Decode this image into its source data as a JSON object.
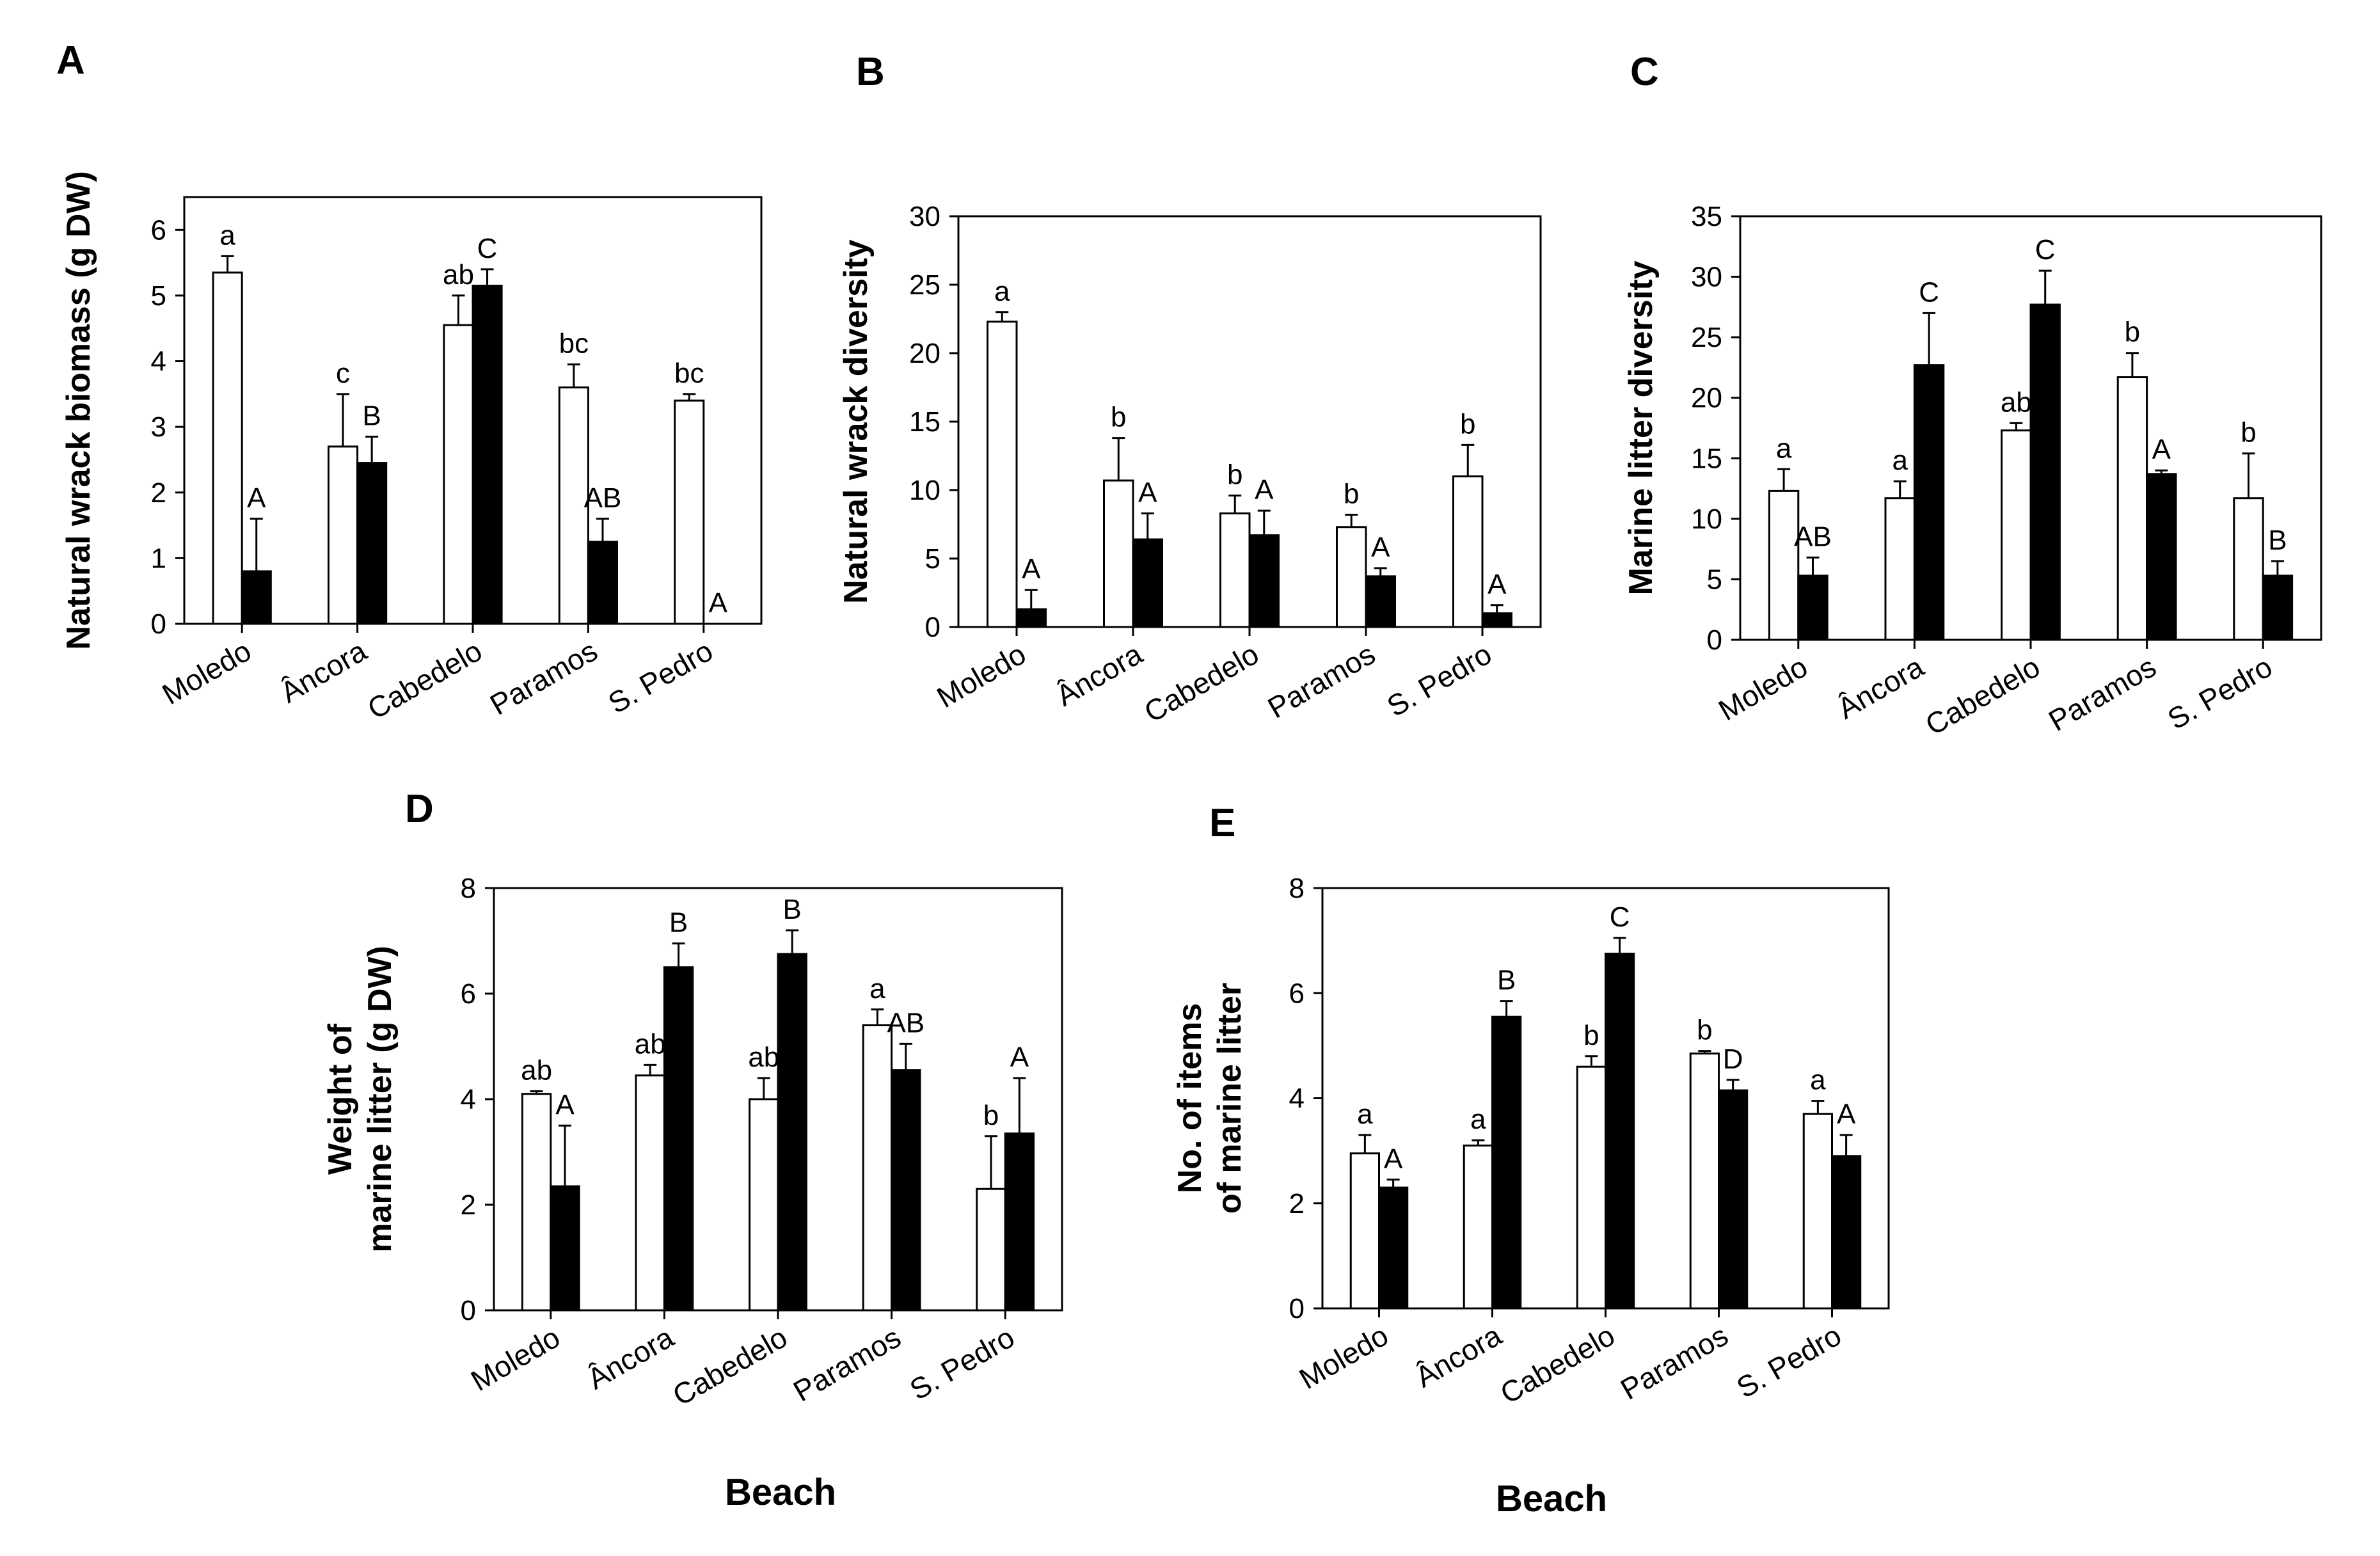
{
  "figure": {
    "description_axis_title": "Beach",
    "colors": {
      "open_bar": "#ffffff",
      "filled_bar": "#000000",
      "stroke": "#000000"
    }
  },
  "chart_data": [
    {
      "panel": "A",
      "type": "bar",
      "categories": [
        "Moledo",
        "Âncora",
        "Cabedelo",
        "Paramos",
        "S. Pedro"
      ],
      "ylabel": "Natural wrack biomass (g DW)",
      "xlabel": "",
      "ylim": [
        0,
        6.5
      ],
      "yticks": [
        0,
        1,
        2,
        3,
        4,
        5,
        6
      ],
      "series": [
        {
          "name": "open",
          "fill": "#ffffff",
          "values": [
            5.35,
            2.7,
            4.55,
            3.6,
            3.4
          ],
          "errors": [
            0.25,
            0.8,
            0.45,
            0.35,
            0.1
          ],
          "letters": [
            "a",
            "c",
            "ab",
            "bc",
            "bc"
          ]
        },
        {
          "name": "filled",
          "fill": "#000000",
          "values": [
            0.8,
            2.45,
            5.15,
            1.25,
            0
          ],
          "errors": [
            0.8,
            0.4,
            0.25,
            0.35,
            0
          ],
          "letters": [
            "A",
            "B",
            "C",
            "AB",
            "A"
          ]
        }
      ]
    },
    {
      "panel": "B",
      "type": "bar",
      "categories": [
        "Moledo",
        "Âncora",
        "Cabedelo",
        "Paramos",
        "S. Pedro"
      ],
      "ylabel": "Natural wrack diversity",
      "xlabel": "",
      "ylim": [
        0,
        30
      ],
      "yticks": [
        0,
        5,
        10,
        15,
        20,
        25,
        30
      ],
      "series": [
        {
          "name": "open",
          "fill": "#ffffff",
          "values": [
            22.3,
            10.7,
            8.3,
            7.3,
            11.0
          ],
          "errors": [
            0.7,
            3.1,
            1.3,
            0.9,
            2.3
          ],
          "letters": [
            "a",
            "b",
            "b",
            "b",
            "b"
          ]
        },
        {
          "name": "filled",
          "fill": "#000000",
          "values": [
            1.3,
            6.4,
            6.7,
            3.7,
            1.0
          ],
          "errors": [
            1.4,
            1.9,
            1.8,
            0.6,
            0.6
          ],
          "letters": [
            "A",
            "A",
            "A",
            "A",
            "A"
          ]
        }
      ]
    },
    {
      "panel": "C",
      "type": "bar",
      "categories": [
        "Moledo",
        "Âncora",
        "Cabedelo",
        "Paramos",
        "S. Pedro"
      ],
      "ylabel": "Marine litter diversity",
      "xlabel": "",
      "ylim": [
        0,
        35
      ],
      "yticks": [
        0,
        5,
        10,
        15,
        20,
        25,
        30,
        35
      ],
      "series": [
        {
          "name": "open",
          "fill": "#ffffff",
          "values": [
            12.3,
            11.7,
            17.3,
            21.7,
            11.7
          ],
          "errors": [
            1.8,
            1.4,
            0.6,
            2.0,
            3.7
          ],
          "letters": [
            "a",
            "a",
            "ab",
            "b",
            "b"
          ]
        },
        {
          "name": "filled",
          "fill": "#000000",
          "values": [
            5.3,
            22.7,
            27.7,
            13.7,
            5.3
          ],
          "errors": [
            1.5,
            4.3,
            2.8,
            0.3,
            1.2
          ],
          "letters": [
            "AB",
            "C",
            "C",
            "A",
            "B"
          ]
        }
      ]
    },
    {
      "panel": "D",
      "type": "bar",
      "categories": [
        "Moledo",
        "Âncora",
        "Cabedelo",
        "Paramos",
        "S. Pedro"
      ],
      "ylabel": "Weight of marine litter (g DW)",
      "ylabel_lines": [
        "Weight of",
        "marine litter (g DW)"
      ],
      "xlabel": "Beach",
      "ylim": [
        0,
        8
      ],
      "yticks": [
        0,
        2,
        4,
        6,
        8
      ],
      "series": [
        {
          "name": "open",
          "fill": "#ffffff",
          "values": [
            4.1,
            4.45,
            4.0,
            5.4,
            2.3
          ],
          "errors": [
            0.05,
            0.2,
            0.4,
            0.3,
            1.0
          ],
          "letters": [
            "ab",
            "ab",
            "ab",
            "a",
            "b"
          ]
        },
        {
          "name": "filled",
          "fill": "#000000",
          "values": [
            2.35,
            6.5,
            6.75,
            4.55,
            3.35
          ],
          "errors": [
            1.15,
            0.45,
            0.45,
            0.5,
            1.05
          ],
          "letters": [
            "A",
            "B",
            "B",
            "AB",
            "A"
          ]
        }
      ]
    },
    {
      "panel": "E",
      "type": "bar",
      "categories": [
        "Moledo",
        "Âncora",
        "Cabedelo",
        "Paramos",
        "S. Pedro"
      ],
      "ylabel": "No. of items of marine litter",
      "ylabel_lines": [
        "No. of items",
        "of marine litter"
      ],
      "xlabel": "Beach",
      "ylim": [
        0,
        8
      ],
      "yticks": [
        0,
        2,
        4,
        6,
        8
      ],
      "series": [
        {
          "name": "open",
          "fill": "#ffffff",
          "values": [
            2.95,
            3.1,
            4.6,
            4.85,
            3.7
          ],
          "errors": [
            0.35,
            0.1,
            0.2,
            0.05,
            0.25
          ],
          "letters": [
            "a",
            "a",
            "b",
            "b",
            "a"
          ]
        },
        {
          "name": "filled",
          "fill": "#000000",
          "values": [
            2.3,
            5.55,
            6.75,
            4.15,
            2.9
          ],
          "errors": [
            0.15,
            0.3,
            0.3,
            0.2,
            0.4
          ],
          "letters": [
            "A",
            "B",
            "C",
            "D",
            "A"
          ]
        }
      ]
    }
  ]
}
